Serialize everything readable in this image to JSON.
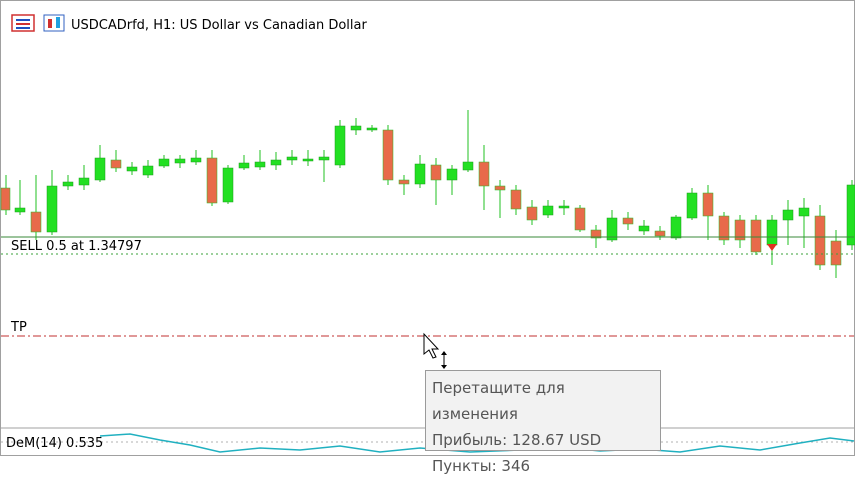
{
  "header": {
    "title": "USDCADrfd, H1:  US Dollar vs Canadian Dollar"
  },
  "chart": {
    "order_label": "SELL 0.5 at 1.34797",
    "tp_label": "TP"
  },
  "tooltip": {
    "lines": [
      "Перетащите для изменения",
      "Прибыль: 128.67 USD",
      "Пункты: 346"
    ]
  },
  "indicator": {
    "label": "DeM(14) 0.535"
  }
}
